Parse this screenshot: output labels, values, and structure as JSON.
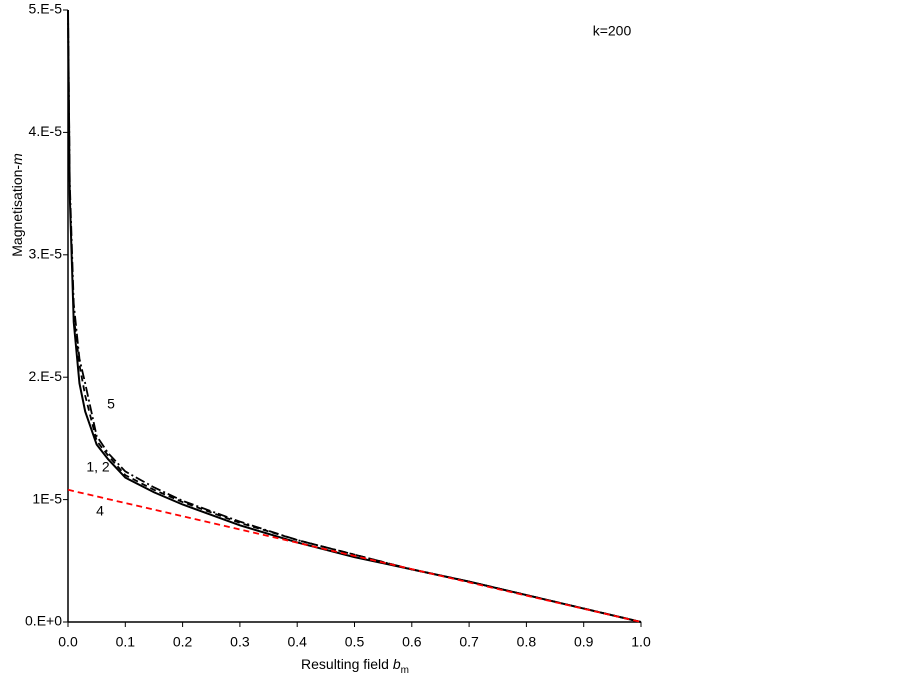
{
  "chart_data": {
    "type": "line",
    "xlabel": {
      "text": "Resulting field ",
      "var": "b",
      "sub": "m"
    },
    "ylabel": {
      "text": "Magnetisation-",
      "var": "m"
    },
    "annotations": [
      "k=200",
      "5",
      "1, 2",
      "4"
    ],
    "x": [
      0,
      0.003,
      0.01,
      0.02,
      0.03,
      0.05,
      0.07,
      0.1,
      0.15,
      0.2,
      0.3,
      0.4,
      0.5,
      0.6,
      0.7,
      0.8,
      0.9,
      1.0
    ],
    "series": [
      {
        "color": "#000000",
        "style": "solid",
        "values": [
          5e-05,
          3.5e-05,
          2.45e-05,
          1.95e-05,
          1.72e-05,
          1.45e-05,
          1.33e-05,
          1.18e-05,
          1.06e-05,
          9.6e-06,
          7.9e-06,
          6.5e-06,
          5.3e-06,
          4.3e-06,
          3.3e-06,
          2.2e-06,
          1.1e-06,
          0
        ]
      },
      {
        "color": "#000000",
        "style": "dashdot",
        "values": [
          5e-05,
          3.6e-05,
          2.6e-05,
          2.15e-05,
          1.95e-05,
          1.52e-05,
          1.38e-05,
          1.23e-05,
          1.1e-05,
          9.9e-06,
          8.2e-06,
          6.7e-06,
          5.5e-06,
          4.3e-06,
          3.3e-06,
          2.2e-06,
          1.1e-06,
          0
        ]
      },
      {
        "color": "#000000",
        "style": "dashed",
        "values": [
          null,
          null,
          2.5e-05,
          2.1e-05,
          1.85e-05,
          1.48e-05,
          1.36e-05,
          1.2e-05,
          1.08e-05,
          9.8e-06,
          8.1e-06,
          6.7e-06,
          5.5e-06,
          4.3e-06,
          3.3e-06,
          2.2e-06,
          1.1e-06,
          0
        ]
      },
      {
        "color": "#ff0000",
        "style": "dashed",
        "values": [
          1.08e-05,
          1.077e-05,
          1.069e-05,
          1.058e-05,
          1.048e-05,
          1.026e-05,
          1.004e-05,
          9.72e-06,
          9.18e-06,
          8.64e-06,
          7.56e-06,
          6.48e-06,
          5.4e-06,
          4.32e-06,
          3.24e-06,
          2.16e-06,
          1.08e-06,
          0
        ]
      }
    ],
    "xlim": [
      0,
      1.0
    ],
    "xticks": [
      {
        "value": 0,
        "label": "0.0"
      },
      0.1,
      0.2,
      0.3,
      0.4,
      0.5,
      0.6,
      0.7,
      0.8,
      0.9,
      {
        "value": 1,
        "label": "1.0"
      }
    ],
    "ylim": [
      0,
      5e-05
    ],
    "yticks": [
      {
        "value": 0,
        "label": "0.E+0"
      },
      {
        "value": 1e-05,
        "label": "1E-5"
      },
      {
        "value": 2e-05,
        "label": "2.E-5"
      },
      {
        "value": 3e-05,
        "label": "3.E-5"
      },
      {
        "value": 4e-05,
        "label": "4.E-5"
      },
      {
        "value": 5e-05,
        "label": "5.E-5"
      }
    ],
    "grid": false
  }
}
